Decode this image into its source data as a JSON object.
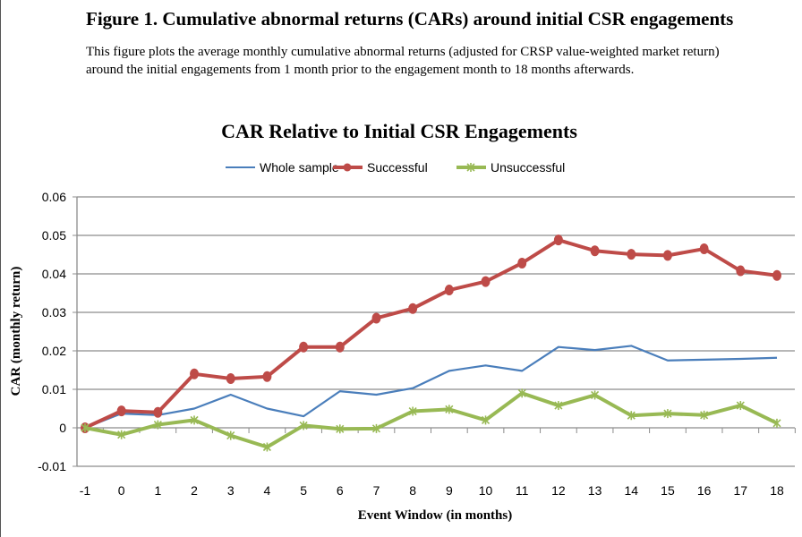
{
  "figure": {
    "title": "Figure 1. Cumulative abnormal returns (CARs) around initial CSR engagements",
    "caption": "This figure plots the average monthly cumulative abnormal returns (adjusted for CRSP value-weighted market return) around the initial engagements from 1 month prior to the engagement month to 18 months afterwards."
  },
  "chart_data": {
    "type": "line",
    "title": "CAR Relative to Initial CSR Engagements",
    "xlabel": "Event Window (in months)",
    "ylabel": "CAR (monthly return)",
    "x": [
      -1,
      0,
      1,
      2,
      3,
      4,
      5,
      6,
      7,
      8,
      9,
      10,
      11,
      12,
      13,
      14,
      15,
      16,
      17,
      18
    ],
    "ylim": [
      -0.01,
      0.06
    ],
    "yticks": [
      "0.06",
      "0.05",
      "0.04",
      "0.03",
      "0.02",
      "0.01",
      "0",
      "-0.01"
    ],
    "ytick_values": [
      0.06,
      0.05,
      0.04,
      0.03,
      0.02,
      0.01,
      0,
      -0.01
    ],
    "grid": true,
    "legend_position": "top",
    "series": [
      {
        "name": "Whole sample",
        "color": "#4a7ebb",
        "marker": "none",
        "values": [
          0,
          0.0037,
          0.0033,
          0.005,
          0.0086,
          0.005,
          0.003,
          0.0095,
          0.0086,
          0.0103,
          0.0148,
          0.0162,
          0.0148,
          0.021,
          0.0202,
          0.0213,
          0.0175,
          0.0177,
          0.0179,
          0.0182
        ]
      },
      {
        "name": "Successful",
        "color": "#be4b48",
        "marker": "circle",
        "values": [
          0,
          0.0044,
          0.004,
          0.014,
          0.0128,
          0.0133,
          0.021,
          0.021,
          0.0285,
          0.031,
          0.0358,
          0.038,
          0.0428,
          0.0488,
          0.046,
          0.0451,
          0.0448,
          0.0465,
          0.0408,
          0.0396
        ]
      },
      {
        "name": "Unsuccessful",
        "color": "#98b954",
        "marker": "star",
        "values": [
          0,
          -0.0018,
          0.0008,
          0.002,
          -0.002,
          -0.005,
          0.0006,
          -0.0003,
          -0.0002,
          0.0043,
          0.0048,
          0.002,
          0.009,
          0.0058,
          0.0085,
          0.0032,
          0.0037,
          0.0033,
          0.0058,
          0.0012
        ]
      }
    ]
  }
}
